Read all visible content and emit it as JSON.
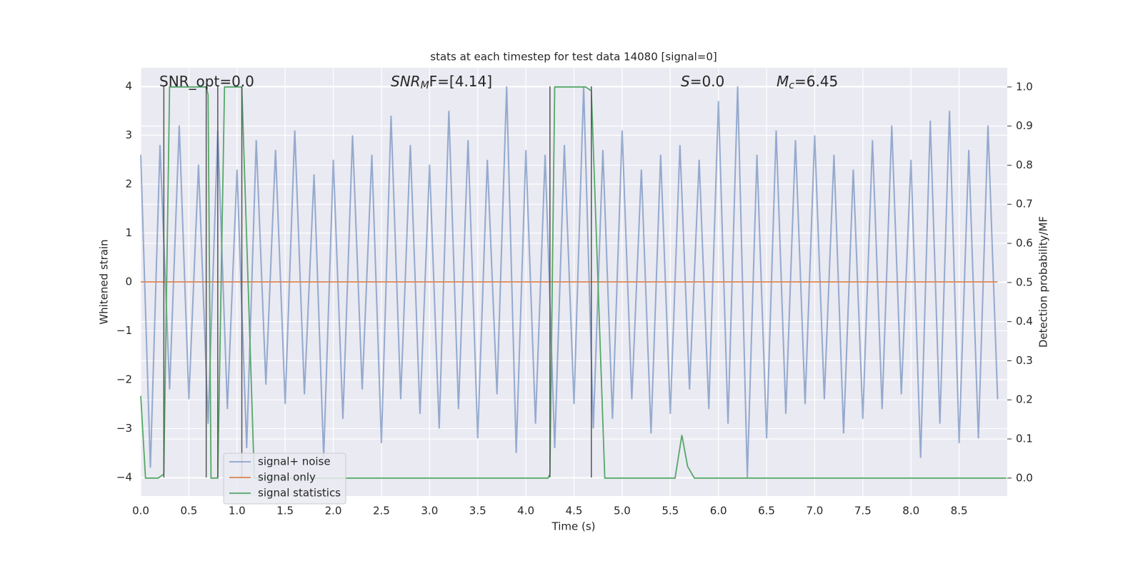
{
  "chart_data": {
    "type": "line",
    "title": "stats at each timestep for test data 14080 [signal=0]",
    "xlabel": "Time (s)",
    "ylabel": "Whitened strain",
    "y2label": "Detection probability/MF",
    "xlim": [
      0,
      9.0
    ],
    "ylim": [
      -4.38,
      4.38
    ],
    "y2lim": [
      -0.046,
      1.049
    ],
    "xticks": [
      {
        "value": 0,
        "label": "0.0"
      },
      {
        "value": 0.5,
        "label": "0.5"
      },
      {
        "value": 1,
        "label": "1.0"
      },
      {
        "value": 1.5,
        "label": "1.5"
      },
      {
        "value": 2,
        "label": "2.0"
      },
      {
        "value": 2.5,
        "label": "2.5"
      },
      {
        "value": 3,
        "label": "3.0"
      },
      {
        "value": 3.5,
        "label": "3.5"
      },
      {
        "value": 4,
        "label": "4.0"
      },
      {
        "value": 4.5,
        "label": "4.5"
      },
      {
        "value": 5,
        "label": "5.0"
      },
      {
        "value": 5.5,
        "label": "5.5"
      },
      {
        "value": 6,
        "label": "6.0"
      },
      {
        "value": 6.5,
        "label": "6.5"
      },
      {
        "value": 7,
        "label": "7.0"
      },
      {
        "value": 7.5,
        "label": "7.5"
      },
      {
        "value": 8,
        "label": "8.0"
      },
      {
        "value": 8.5,
        "label": "8.5"
      }
    ],
    "yticks": [
      {
        "value": -4,
        "label": "−4"
      },
      {
        "value": -3,
        "label": "−3"
      },
      {
        "value": -2,
        "label": "−2"
      },
      {
        "value": -1,
        "label": "−1"
      },
      0,
      1,
      2,
      3,
      4
    ],
    "y2ticks": [
      {
        "value": 0,
        "label": "0.0"
      },
      {
        "value": 0.1,
        "label": "0.1"
      },
      {
        "value": 0.2,
        "label": "0.2"
      },
      {
        "value": 0.3,
        "label": "0.3"
      },
      {
        "value": 0.4,
        "label": "0.4"
      },
      {
        "value": 0.5,
        "label": "0.5"
      },
      {
        "value": 0.6,
        "label": "0.6"
      },
      {
        "value": 0.7,
        "label": "0.7"
      },
      {
        "value": 0.8,
        "label": "0.8"
      },
      {
        "value": 0.9,
        "label": "0.9"
      },
      {
        "value": 1,
        "label": "1.0"
      }
    ],
    "grid": true,
    "legend": "lower left",
    "annotations": [
      {
        "text": "SNR_opt=0.0"
      },
      {
        "main": "SNR",
        "sub": "M",
        "rest": "F=[4.14]"
      },
      {
        "main": "S",
        "rest": "=0.0"
      },
      {
        "main": "M",
        "sub": "c",
        "rest": "=6.45"
      }
    ],
    "vlines": {
      "x": [
        0.24,
        0.68,
        0.8,
        1.05,
        4.25,
        4.68
      ],
      "ymin": -4,
      "ymax": 4,
      "color": "#555555"
    },
    "series": [
      {
        "name": "signal+ noise",
        "color": "#4c72b0",
        "x": [
          0.0,
          0.1,
          0.2,
          0.3,
          0.4,
          0.5,
          0.6,
          0.7,
          0.8,
          0.9,
          1.0,
          1.1,
          1.2,
          1.3,
          1.4,
          1.5,
          1.6,
          1.7,
          1.8,
          1.9,
          2.0,
          2.1,
          2.2,
          2.3,
          2.4,
          2.5,
          2.6,
          2.7,
          2.8,
          2.9,
          3.0,
          3.1,
          3.2,
          3.3,
          3.4,
          3.5,
          3.6,
          3.7,
          3.8,
          3.9,
          4.0,
          4.1,
          4.2,
          4.3,
          4.4,
          4.5,
          4.6,
          4.7,
          4.8,
          4.9,
          5.0,
          5.1,
          5.2,
          5.3,
          5.4,
          5.5,
          5.6,
          5.7,
          5.8,
          5.9,
          6.0,
          6.1,
          6.2,
          6.3,
          6.4,
          6.5,
          6.6,
          6.7,
          6.8,
          6.9,
          7.0,
          7.1,
          7.2,
          7.3,
          7.4,
          7.5,
          7.6,
          7.7,
          7.8,
          7.9,
          8.0,
          8.1,
          8.2,
          8.3,
          8.4,
          8.5,
          8.6,
          8.7,
          8.8,
          8.9
        ],
        "values": [
          2.6,
          -3.8,
          2.8,
          -2.2,
          3.2,
          -2.4,
          2.4,
          -2.9,
          3.1,
          -2.6,
          2.3,
          -3.4,
          2.9,
          -2.1,
          2.7,
          -2.5,
          3.1,
          -2.3,
          2.2,
          -3.6,
          2.5,
          -2.8,
          3.0,
          -2.2,
          2.6,
          -3.3,
          3.4,
          -2.4,
          2.8,
          -2.7,
          2.4,
          -3.0,
          3.5,
          -2.6,
          2.9,
          -3.2,
          2.5,
          -2.3,
          4.0,
          -3.5,
          2.7,
          -2.9,
          2.6,
          -3.4,
          2.8,
          -2.5,
          4.0,
          -3.0,
          2.7,
          -2.8,
          3.1,
          -2.4,
          2.3,
          -3.1,
          2.6,
          -2.7,
          2.8,
          -2.2,
          2.5,
          -2.6,
          3.7,
          -2.9,
          4.0,
          -4.0,
          2.6,
          -3.2,
          3.1,
          -2.7,
          2.9,
          -2.5,
          3.0,
          -2.4,
          2.6,
          -3.1,
          2.3,
          -2.8,
          2.9,
          -2.6,
          3.2,
          -2.3,
          2.5,
          -3.6,
          3.3,
          -2.9,
          3.5,
          -3.3,
          2.7,
          -3.2,
          3.2,
          -2.4
        ]
      },
      {
        "name": "signal only",
        "color": "#dd8452",
        "x": [
          0,
          8.9
        ],
        "values": [
          0,
          0
        ]
      },
      {
        "name": "signal statistics",
        "color": "#55a868",
        "axis": "y2",
        "x": [
          0.0,
          0.05,
          0.18,
          0.24,
          0.3,
          0.68,
          0.7,
          0.73,
          0.8,
          0.87,
          1.05,
          1.18,
          1.5,
          4.23,
          4.25,
          4.3,
          4.62,
          4.68,
          4.82,
          5.55,
          5.62,
          5.68,
          5.75,
          8.99
        ],
        "values": [
          0.21,
          0.0,
          0.0,
          0.01,
          1.0,
          1.0,
          0.98,
          0.0,
          0.0,
          1.0,
          1.0,
          0.0,
          0.0,
          0.0,
          0.01,
          1.0,
          1.0,
          0.99,
          0.0,
          0.0,
          0.11,
          0.03,
          0.0,
          0.0
        ]
      }
    ]
  }
}
